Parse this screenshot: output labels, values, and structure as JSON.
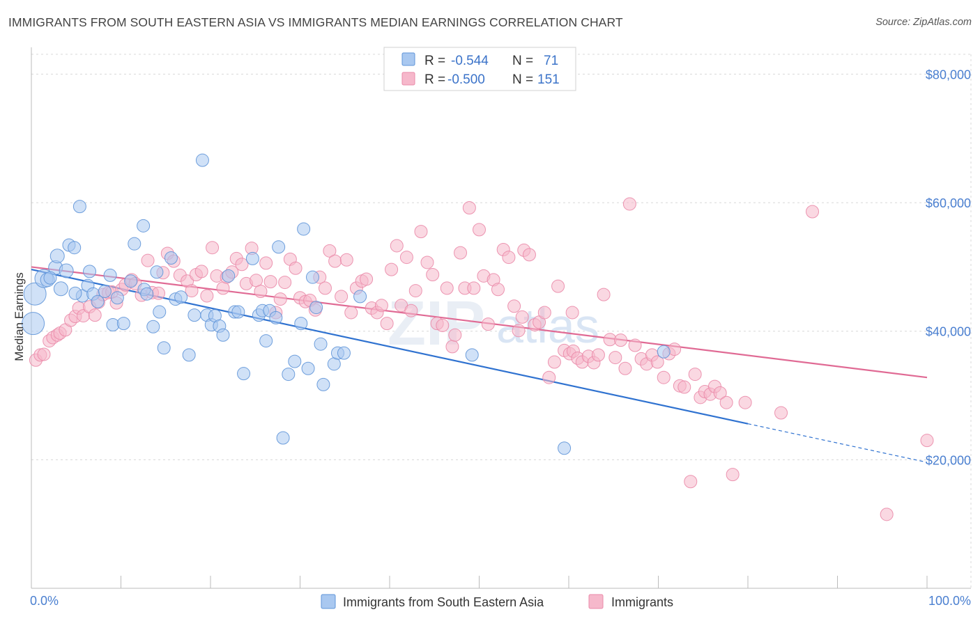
{
  "title": "IMMIGRANTS FROM SOUTH EASTERN ASIA VS IMMIGRANTS MEDIAN EARNINGS CORRELATION CHART",
  "source": "Source: ZipAtlas.com",
  "watermark": {
    "part1": "ZIP",
    "part2": "atlas"
  },
  "colors": {
    "blue_fill": "#a9c8f0",
    "blue_stroke": "#5f95d8",
    "blue_line": "#2f72d0",
    "pink_fill": "#f6b8cb",
    "pink_stroke": "#ea8aa8",
    "pink_line": "#e06a94",
    "grid": "#d8d8d8",
    "tick_label": "#4a7fd0"
  },
  "legend": {
    "r_label": "R =",
    "n_label": "N =",
    "rows": [
      {
        "series": "blue",
        "r": "-0.544",
        "n": "71"
      },
      {
        "series": "pink",
        "r": "-0.500",
        "n": "151"
      }
    ]
  },
  "bottom_legend": [
    {
      "series": "blue",
      "label": "Immigrants from South Eastern Asia"
    },
    {
      "series": "pink",
      "label": "Immigrants"
    }
  ],
  "chart_data": {
    "type": "scatter",
    "title": "IMMIGRANTS FROM SOUTH EASTERN ASIA VS IMMIGRANTS MEDIAN EARNINGS CORRELATION CHART",
    "xlabel": "",
    "ylabel": "Median Earnings",
    "xlim": [
      0,
      100
    ],
    "ylim": [
      0,
      82000
    ],
    "x_tick_labels": [
      "0.0%",
      "100.0%"
    ],
    "y_ticks": [
      20000,
      40000,
      60000,
      80000
    ],
    "y_tick_labels": [
      "$20,000",
      "$40,000",
      "$60,000",
      "$80,000"
    ],
    "grid": true,
    "legend_position": "top-center",
    "series": [
      {
        "name": "Immigrants from South Eastern Asia",
        "color": "blue",
        "trend": {
          "x0": 0,
          "y0": 49600,
          "x1": 80,
          "y1": 25600,
          "dashed_to_x": 100,
          "dashed_to_y": 19600
        },
        "points": [
          [
            0.2,
            41200,
            16
          ],
          [
            0.4,
            45800,
            16
          ],
          [
            1.4,
            48200,
            13
          ],
          [
            1.8,
            48000,
            10
          ],
          [
            2.7,
            49900,
            10
          ],
          [
            2.9,
            51700,
            10
          ],
          [
            3.3,
            46600,
            10
          ],
          [
            3.9,
            49400,
            10
          ],
          [
            4.2,
            53400,
            9
          ],
          [
            4.8,
            53000,
            9
          ],
          [
            5.4,
            59400,
            9
          ],
          [
            5.7,
            45500,
            9
          ],
          [
            6.3,
            47100,
            9
          ],
          [
            6.5,
            49300,
            9
          ],
          [
            6.9,
            45800,
            9
          ],
          [
            7.4,
            44600,
            9
          ],
          [
            8.2,
            46200,
            9
          ],
          [
            8.8,
            48700,
            9
          ],
          [
            9.1,
            41000,
            9
          ],
          [
            9.6,
            45200,
            9
          ],
          [
            10.3,
            41200,
            9
          ],
          [
            11.1,
            47800,
            9
          ],
          [
            11.5,
            53600,
            9
          ],
          [
            12.5,
            56400,
            9
          ],
          [
            12.6,
            46500,
            9
          ],
          [
            12.9,
            45800,
            9
          ],
          [
            13.6,
            40700,
            9
          ],
          [
            14.0,
            49200,
            9
          ],
          [
            14.3,
            43000,
            9
          ],
          [
            14.8,
            37400,
            9
          ],
          [
            15.6,
            51400,
            9
          ],
          [
            16.1,
            45000,
            9
          ],
          [
            16.7,
            45300,
            9
          ],
          [
            17.6,
            36300,
            9
          ],
          [
            18.2,
            42500,
            9
          ],
          [
            19.1,
            66600,
            9
          ],
          [
            19.6,
            42500,
            9
          ],
          [
            20.1,
            41000,
            9
          ],
          [
            20.5,
            42400,
            9
          ],
          [
            21.0,
            40800,
            9
          ],
          [
            21.4,
            39400,
            9
          ],
          [
            22.0,
            48600,
            9
          ],
          [
            22.7,
            43000,
            9
          ],
          [
            23.1,
            43000,
            9
          ],
          [
            23.7,
            33400,
            9
          ],
          [
            24.7,
            51300,
            9
          ],
          [
            25.4,
            42500,
            9
          ],
          [
            25.8,
            43200,
            9
          ],
          [
            26.2,
            38500,
            9
          ],
          [
            26.6,
            43200,
            9
          ],
          [
            27.3,
            42100,
            9
          ],
          [
            27.6,
            53100,
            9
          ],
          [
            28.1,
            23400,
            9
          ],
          [
            28.7,
            33300,
            9
          ],
          [
            29.4,
            35300,
            9
          ],
          [
            30.1,
            41200,
            9
          ],
          [
            30.4,
            55900,
            9
          ],
          [
            30.9,
            34200,
            9
          ],
          [
            31.4,
            48400,
            9
          ],
          [
            31.8,
            43700,
            9
          ],
          [
            32.3,
            38000,
            9
          ],
          [
            32.6,
            31700,
            9
          ],
          [
            33.8,
            34900,
            9
          ],
          [
            34.2,
            36600,
            9
          ],
          [
            34.9,
            36600,
            9
          ],
          [
            36.7,
            45400,
            9
          ],
          [
            49.2,
            36300,
            9
          ],
          [
            59.5,
            21800,
            9
          ],
          [
            70.6,
            36800,
            9
          ],
          [
            2.1,
            48300,
            9
          ],
          [
            4.9,
            45900,
            9
          ]
        ]
      },
      {
        "name": "Immigrants",
        "color": "pink",
        "trend": {
          "x0": 0,
          "y0": 50000,
          "x1": 100,
          "y1": 32800
        },
        "points": [
          [
            0.5,
            35500,
            9
          ],
          [
            1.0,
            36300,
            9
          ],
          [
            1.4,
            36400,
            9
          ],
          [
            2.0,
            38500,
            9
          ],
          [
            2.4,
            39000,
            9
          ],
          [
            2.9,
            39400,
            9
          ],
          [
            3.2,
            39700,
            9
          ],
          [
            3.8,
            40200,
            9
          ],
          [
            4.4,
            41700,
            9
          ],
          [
            4.9,
            42300,
            9
          ],
          [
            5.3,
            43600,
            9
          ],
          [
            5.8,
            42400,
            9
          ],
          [
            6.5,
            43800,
            9
          ],
          [
            7.1,
            42500,
            9
          ],
          [
            7.5,
            44500,
            9
          ],
          [
            8.0,
            45700,
            9
          ],
          [
            8.6,
            46000,
            9
          ],
          [
            9.0,
            46100,
            9
          ],
          [
            9.5,
            44400,
            9
          ],
          [
            10.1,
            46500,
            9
          ],
          [
            10.5,
            47200,
            9
          ],
          [
            11.2,
            48000,
            9
          ],
          [
            11.6,
            47400,
            9
          ],
          [
            12.3,
            45600,
            9
          ],
          [
            13.0,
            51000,
            9
          ],
          [
            13.5,
            46000,
            9
          ],
          [
            14.2,
            45900,
            9
          ],
          [
            14.7,
            49100,
            9
          ],
          [
            15.2,
            52100,
            9
          ],
          [
            15.9,
            50900,
            9
          ],
          [
            16.6,
            48700,
            9
          ],
          [
            17.4,
            47800,
            9
          ],
          [
            17.9,
            46300,
            9
          ],
          [
            18.4,
            48800,
            9
          ],
          [
            19.0,
            49300,
            9
          ],
          [
            19.6,
            45500,
            9
          ],
          [
            20.2,
            53000,
            9
          ],
          [
            20.7,
            48600,
            9
          ],
          [
            21.4,
            46700,
            9
          ],
          [
            21.8,
            48400,
            9
          ],
          [
            22.4,
            49200,
            9
          ],
          [
            22.9,
            51300,
            9
          ],
          [
            23.5,
            50400,
            9
          ],
          [
            24.0,
            47400,
            9
          ],
          [
            24.6,
            52900,
            9
          ],
          [
            25.1,
            47900,
            9
          ],
          [
            25.6,
            46200,
            9
          ],
          [
            26.2,
            50600,
            9
          ],
          [
            26.7,
            47700,
            9
          ],
          [
            27.3,
            42900,
            9
          ],
          [
            27.8,
            45000,
            9
          ],
          [
            28.3,
            47600,
            9
          ],
          [
            28.9,
            51200,
            9
          ],
          [
            29.5,
            49800,
            9
          ],
          [
            30.0,
            45200,
            9
          ],
          [
            30.6,
            44600,
            9
          ],
          [
            31.1,
            44800,
            9
          ],
          [
            31.7,
            43300,
            9
          ],
          [
            32.2,
            48400,
            9
          ],
          [
            32.8,
            46700,
            9
          ],
          [
            33.3,
            52500,
            9
          ],
          [
            33.9,
            50900,
            9
          ],
          [
            34.6,
            45400,
            9
          ],
          [
            35.2,
            51100,
            9
          ],
          [
            35.7,
            42900,
            9
          ],
          [
            36.3,
            46700,
            9
          ],
          [
            36.9,
            47800,
            9
          ],
          [
            37.4,
            48100,
            9
          ],
          [
            38.0,
            43600,
            9
          ],
          [
            38.6,
            42900,
            9
          ],
          [
            39.1,
            44000,
            9
          ],
          [
            39.7,
            41200,
            9
          ],
          [
            40.2,
            49600,
            9
          ],
          [
            40.8,
            53300,
            9
          ],
          [
            41.3,
            44000,
            9
          ],
          [
            41.9,
            51500,
            9
          ],
          [
            42.4,
            43200,
            9
          ],
          [
            42.9,
            46300,
            9
          ],
          [
            43.5,
            55500,
            9
          ],
          [
            44.2,
            50700,
            9
          ],
          [
            44.8,
            48800,
            9
          ],
          [
            45.3,
            41200,
            9
          ],
          [
            45.9,
            40900,
            9
          ],
          [
            46.4,
            46700,
            9
          ],
          [
            47.0,
            37600,
            9
          ],
          [
            47.3,
            39400,
            9
          ],
          [
            47.9,
            52200,
            9
          ],
          [
            48.4,
            46700,
            9
          ],
          [
            48.9,
            59200,
            9
          ],
          [
            49.4,
            46700,
            9
          ],
          [
            50.0,
            55800,
            9
          ],
          [
            50.5,
            48600,
            9
          ],
          [
            51.0,
            41100,
            9
          ],
          [
            51.6,
            48000,
            9
          ],
          [
            52.1,
            46500,
            9
          ],
          [
            52.7,
            52700,
            9
          ],
          [
            53.3,
            51500,
            9
          ],
          [
            53.9,
            43900,
            9
          ],
          [
            54.4,
            40100,
            9
          ],
          [
            55.0,
            52600,
            9
          ],
          [
            55.6,
            51900,
            9
          ],
          [
            56.2,
            41000,
            9
          ],
          [
            56.7,
            41400,
            9
          ],
          [
            57.3,
            42900,
            9
          ],
          [
            57.8,
            32800,
            9
          ],
          [
            58.4,
            35200,
            9
          ],
          [
            58.8,
            47000,
            9
          ],
          [
            59.5,
            37000,
            9
          ],
          [
            60.1,
            36500,
            9
          ],
          [
            60.5,
            36900,
            9
          ],
          [
            61.0,
            35800,
            9
          ],
          [
            61.5,
            35200,
            9
          ],
          [
            62.2,
            36100,
            9
          ],
          [
            62.8,
            35100,
            9
          ],
          [
            63.3,
            36300,
            9
          ],
          [
            63.9,
            45700,
            9
          ],
          [
            64.6,
            38700,
            9
          ],
          [
            65.2,
            35900,
            9
          ],
          [
            65.8,
            38600,
            9
          ],
          [
            66.3,
            34200,
            9
          ],
          [
            66.8,
            59800,
            9
          ],
          [
            67.4,
            37800,
            9
          ],
          [
            68.1,
            35700,
            9
          ],
          [
            68.7,
            34900,
            9
          ],
          [
            69.3,
            36300,
            9
          ],
          [
            69.9,
            35200,
            9
          ],
          [
            70.6,
            32800,
            9
          ],
          [
            71.2,
            36500,
            9
          ],
          [
            71.8,
            37200,
            9
          ],
          [
            72.4,
            31500,
            9
          ],
          [
            72.9,
            31300,
            9
          ],
          [
            73.6,
            16600,
            9
          ],
          [
            74.1,
            33300,
            9
          ],
          [
            74.7,
            29700,
            9
          ],
          [
            75.2,
            30600,
            9
          ],
          [
            75.8,
            30200,
            9
          ],
          [
            76.3,
            31400,
            9
          ],
          [
            76.9,
            30400,
            9
          ],
          [
            77.6,
            28900,
            9
          ],
          [
            78.3,
            17700,
            9
          ],
          [
            79.7,
            28900,
            9
          ],
          [
            83.7,
            27300,
            9
          ],
          [
            87.2,
            58600,
            9
          ],
          [
            95.5,
            11500,
            9
          ],
          [
            100.0,
            23000,
            9
          ],
          [
            60.4,
            42900,
            9
          ],
          [
            54.8,
            42200,
            9
          ]
        ]
      }
    ]
  }
}
